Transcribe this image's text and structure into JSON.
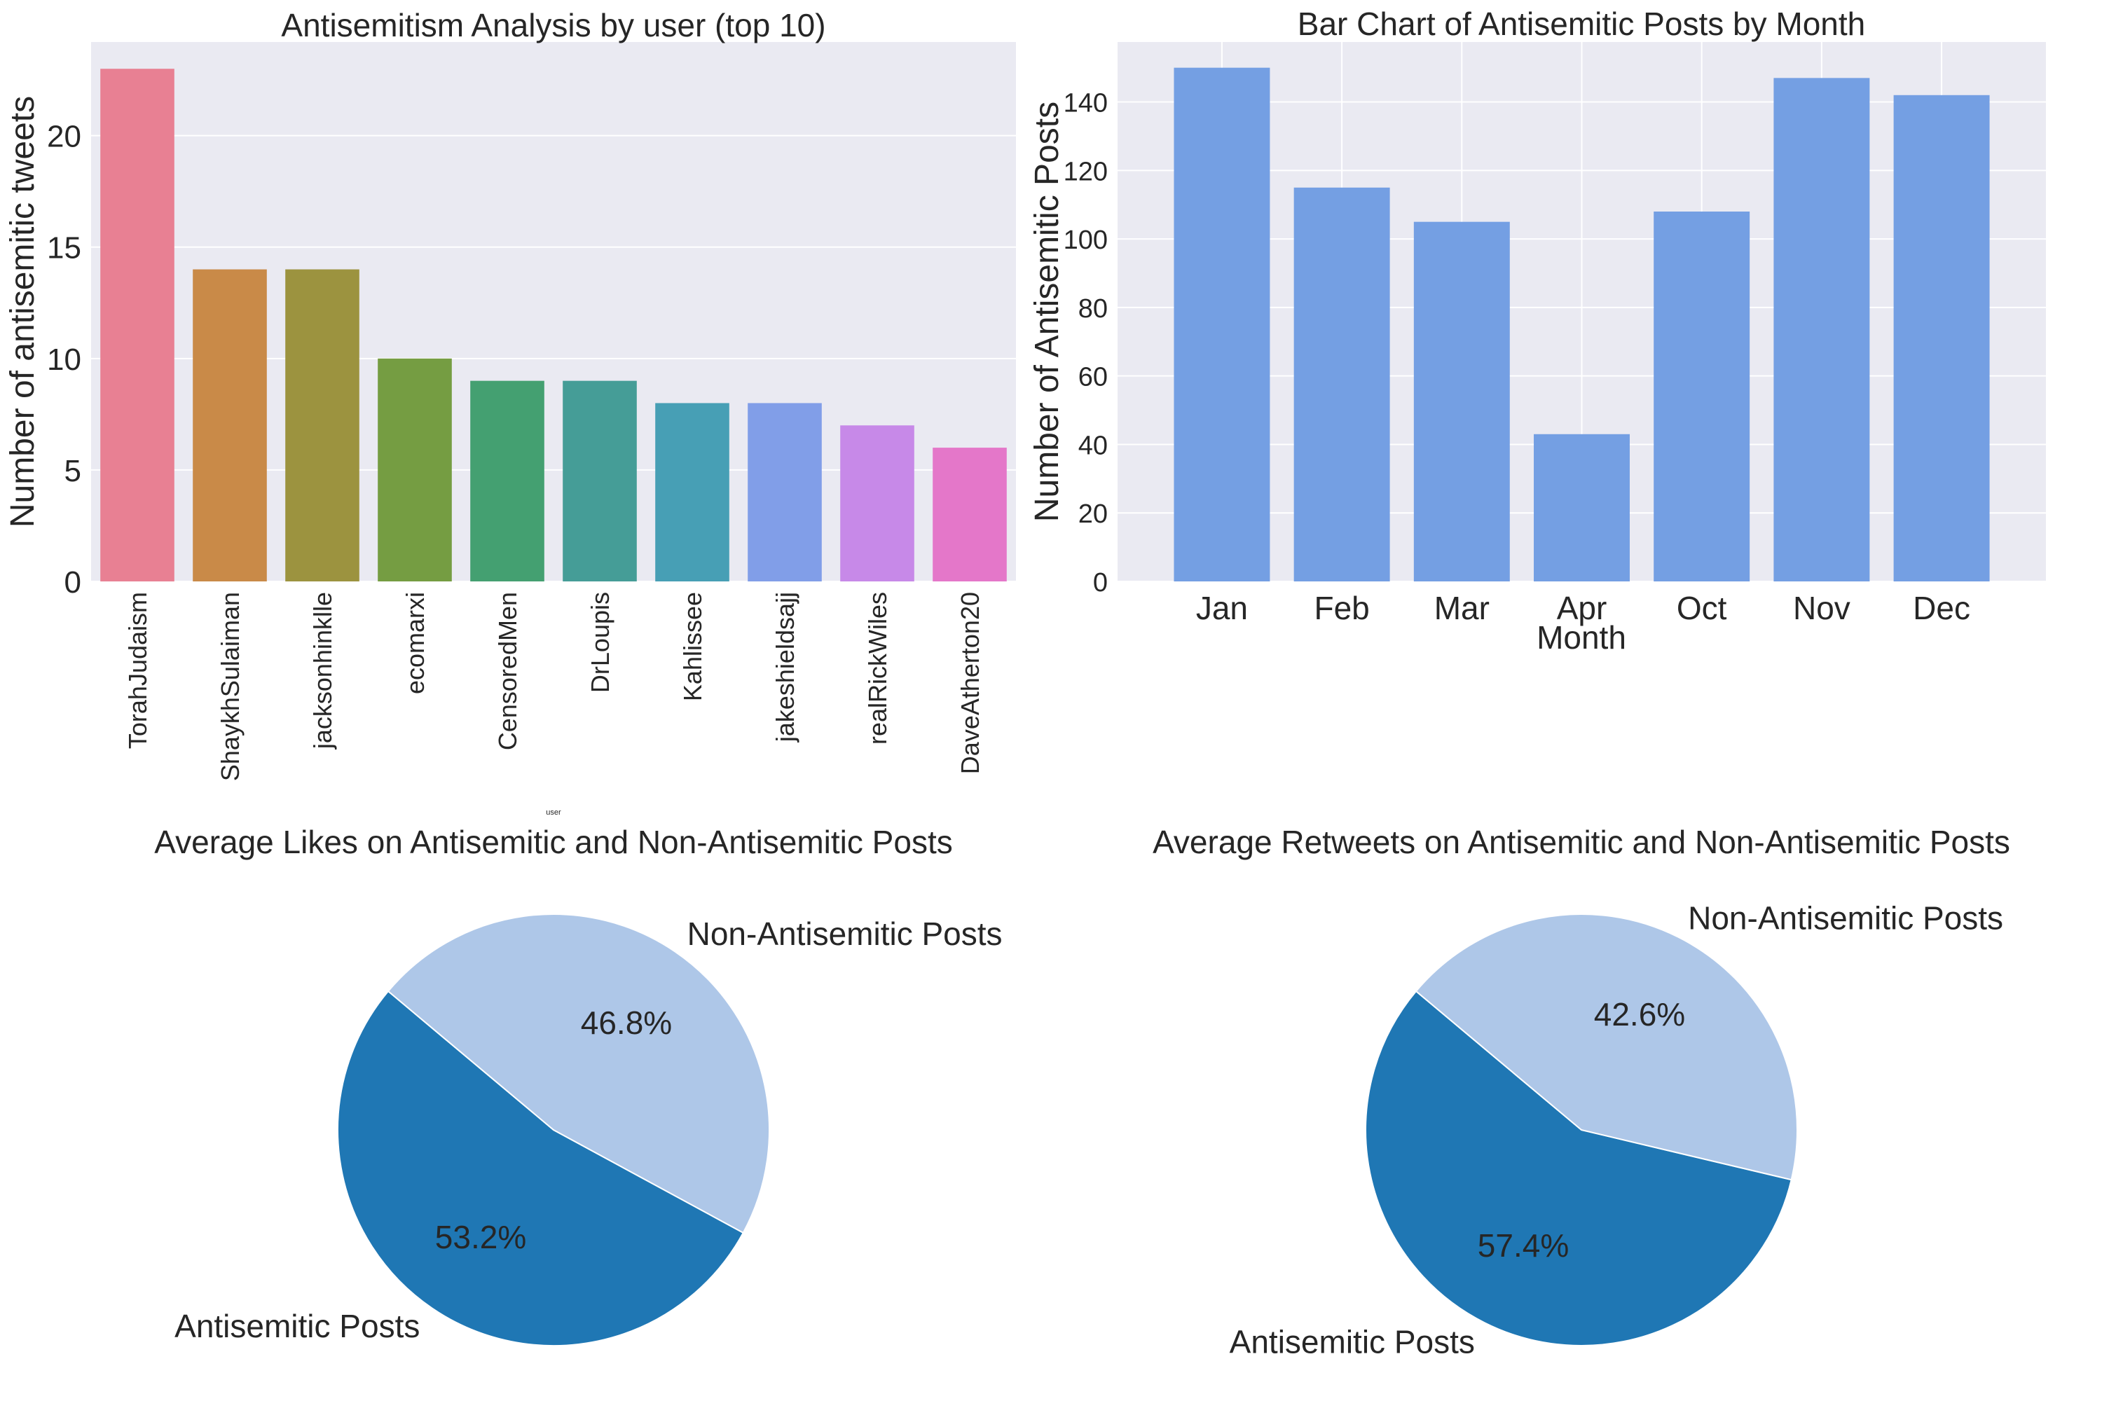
{
  "chart_data": [
    {
      "type": "bar",
      "title": "Antisemitism Analysis by user (top 10)",
      "xlabel": "user",
      "ylabel": "Number of antisemitic tweets",
      "categories": [
        "TorahJudaism",
        "ShaykhSulaiman",
        "jacksonhinklle",
        "ecomarxi",
        "CensoredMen",
        "DrLoupis",
        "Kahlissee",
        "jakeshieldsajj",
        "realRickWiles",
        "DaveAtherton20"
      ],
      "values": [
        23,
        14,
        14,
        10,
        9,
        9,
        8,
        8,
        7,
        6
      ],
      "colors": [
        "#e88093",
        "#c98a48",
        "#9c933f",
        "#759d42",
        "#44a071",
        "#459d97",
        "#479fb5",
        "#819ee8",
        "#c789e8",
        "#e477c9"
      ],
      "ylim": [
        0,
        24.2
      ],
      "yticks": [
        0,
        5,
        10,
        15,
        20
      ],
      "grid": true
    },
    {
      "type": "bar",
      "title": "Bar Chart of Antisemitic Posts by Month",
      "xlabel": "Month",
      "ylabel": "Number of Antisemitic Posts",
      "categories": [
        "Jan",
        "Feb",
        "Mar",
        "Apr",
        "Oct",
        "Nov",
        "Dec"
      ],
      "values": [
        150,
        115,
        105,
        43,
        108,
        147,
        142
      ],
      "color": "#749fe3",
      "ylim": [
        0,
        157.5
      ],
      "yticks": [
        0,
        20,
        40,
        60,
        80,
        100,
        120,
        140
      ],
      "grid": true
    },
    {
      "type": "pie",
      "title": "Average Likes on Antisemitic and Non-Antisemitic Posts",
      "labels": [
        "Antisemitic Posts",
        "Non-Antisemitic Posts"
      ],
      "values": [
        53.2,
        46.8
      ],
      "pct_labels": [
        "53.2%",
        "46.8%"
      ],
      "colors": [
        "#1f77b4",
        "#aec7e8"
      ],
      "startangle": 140
    },
    {
      "type": "pie",
      "title": "Average Retweets on Antisemitic and Non-Antisemitic Posts",
      "labels": [
        "Antisemitic Posts",
        "Non-Antisemitic Posts"
      ],
      "values": [
        57.4,
        42.6
      ],
      "pct_labels": [
        "57.4%",
        "42.6%"
      ],
      "colors": [
        "#1f77b4",
        "#aec7e8"
      ],
      "startangle": 140
    }
  ]
}
